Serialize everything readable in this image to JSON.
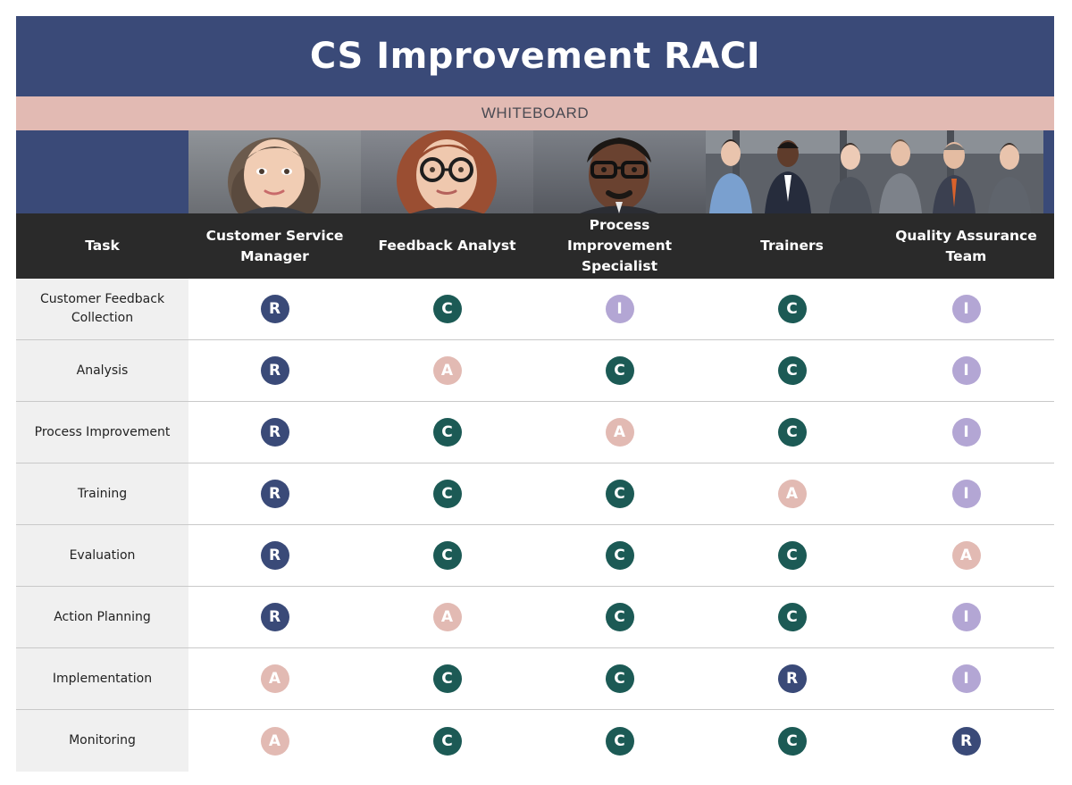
{
  "title": "CS Improvement RACI",
  "subtitle": "WHITEBOARD",
  "header": {
    "task_label": "Task",
    "roles": [
      "Customer Service Manager",
      "Feedback Analyst",
      "Process Improvement Specialist",
      "Trainers",
      "Quality Assurance Team"
    ]
  },
  "avatars": [
    "customer-service-manager-avatar",
    "feedback-analyst-avatar",
    "process-improvement-specialist-avatar",
    "trainers-and-qa-team-group-photo"
  ],
  "legend_colors": {
    "R": "#3a4a78",
    "C": "#1c5a55",
    "A": "#e2bab3",
    "I": "#b3a6d4"
  },
  "rows": [
    {
      "task": "Customer Feedback Collection",
      "values": [
        "R",
        "C",
        "I",
        "C",
        "I"
      ]
    },
    {
      "task": "Analysis",
      "values": [
        "R",
        "A",
        "C",
        "C",
        "I"
      ]
    },
    {
      "task": "Process Improvement",
      "values": [
        "R",
        "C",
        "A",
        "C",
        "I"
      ]
    },
    {
      "task": "Training",
      "values": [
        "R",
        "C",
        "C",
        "A",
        "I"
      ]
    },
    {
      "task": "Evaluation",
      "values": [
        "R",
        "C",
        "C",
        "C",
        "A"
      ]
    },
    {
      "task": "Action Planning",
      "values": [
        "R",
        "A",
        "C",
        "C",
        "I"
      ]
    },
    {
      "task": "Implementation",
      "values": [
        "A",
        "C",
        "C",
        "R",
        "I"
      ]
    },
    {
      "task": "Monitoring",
      "values": [
        "A",
        "C",
        "C",
        "C",
        "R"
      ]
    }
  ]
}
